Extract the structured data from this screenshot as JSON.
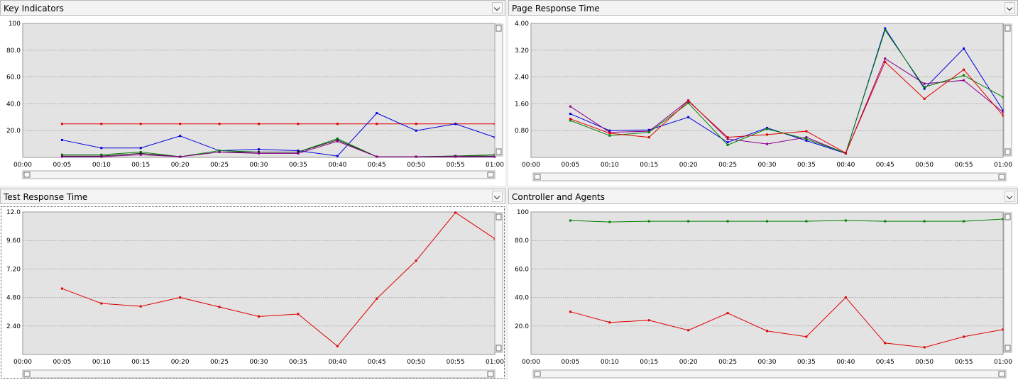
{
  "panels": [
    {
      "id": "key-indicators",
      "title": "Key Indicators",
      "dropdown_icon": "chevron-down-icon",
      "chart_data": {
        "type": "line",
        "title": "Key Indicators",
        "x": [
          "00:00",
          "00:05",
          "00:10",
          "00:15",
          "00:20",
          "00:25",
          "00:30",
          "00:35",
          "00:40",
          "00:45",
          "00:50",
          "00:55",
          "01:00"
        ],
        "y_ticks": [
          "100",
          "80.0",
          "60.0",
          "40.0",
          "20.0"
        ],
        "ylim": [
          0,
          100
        ],
        "grid": true,
        "series": [
          {
            "color": "#e00000",
            "values": [
              null,
              25,
              25,
              25,
              25,
              25,
              25,
              25,
              25,
              25,
              25,
              25,
              25
            ]
          },
          {
            "color": "#0000e0",
            "values": [
              null,
              13,
              7,
              7,
              16,
              5,
              6,
              5,
              1,
              33,
              20,
              25,
              15
            ]
          },
          {
            "color": "#008000",
            "values": [
              null,
              2,
              2,
              4,
              0.5,
              5,
              4,
              4,
              14,
              0.5,
              0.5,
              1,
              2
            ]
          },
          {
            "color": "#202020",
            "values": [
              null,
              1,
              1,
              3,
              0.5,
              4,
              4,
              4,
              13,
              0.5,
              0.5,
              1,
              1
            ]
          },
          {
            "color": "#8b008b",
            "values": [
              null,
              0.5,
              0.5,
              2,
              0.5,
              4,
              3,
              3,
              12,
              0.5,
              0.5,
              0.5,
              0.5
            ]
          }
        ]
      }
    },
    {
      "id": "page-response-time",
      "title": "Page Response Time",
      "dropdown_icon": "chevron-down-icon",
      "chart_data": {
        "type": "line",
        "title": "Page Response Time",
        "x": [
          "00:00",
          "00:05",
          "00:10",
          "00:15",
          "00:20",
          "00:25",
          "00:30",
          "00:35",
          "00:40",
          "00:45",
          "00:50",
          "00:55",
          "01:00"
        ],
        "y_ticks": [
          "4.00",
          "3.20",
          "2.40",
          "1.60",
          "0.80"
        ],
        "ylim": [
          0,
          4
        ],
        "grid": true,
        "series": [
          {
            "color": "#0000e0",
            "values": [
              null,
              1.3,
              0.8,
              0.82,
              1.2,
              0.45,
              0.88,
              0.5,
              0.12,
              3.85,
              2.05,
              3.25,
              1.4
            ]
          },
          {
            "color": "#8b008b",
            "values": [
              null,
              1.52,
              0.75,
              0.78,
              1.7,
              0.55,
              0.4,
              0.6,
              0.12,
              2.95,
              2.2,
              2.3,
              1.35
            ]
          },
          {
            "color": "#008000",
            "values": [
              null,
              1.1,
              0.65,
              0.75,
              1.62,
              0.37,
              0.85,
              0.55,
              0.13,
              3.8,
              2.1,
              2.45,
              1.8
            ]
          },
          {
            "color": "#e00000",
            "values": [
              null,
              1.15,
              0.72,
              0.6,
              1.68,
              0.6,
              0.68,
              0.78,
              0.13,
              2.85,
              1.75,
              2.62,
              1.25
            ]
          }
        ]
      }
    },
    {
      "id": "test-response-time",
      "title": "Test Response Time",
      "dropdown_icon": "chevron-down-icon",
      "chart_data": {
        "type": "line",
        "title": "Test Response Time",
        "x": [
          "00:00",
          "00:05",
          "00:10",
          "00:15",
          "00:20",
          "00:25",
          "00:30",
          "00:35",
          "00:40",
          "00:45",
          "00:50",
          "00:55",
          "01:00"
        ],
        "y_ticks": [
          "12.0",
          "9.60",
          "7.20",
          "4.80",
          "2.40"
        ],
        "ylim": [
          0,
          12
        ],
        "grid": true,
        "series": [
          {
            "color": "#e00000",
            "values": [
              null,
              5.55,
              4.3,
              4.05,
              4.8,
              4.0,
              3.2,
              3.4,
              0.7,
              4.7,
              7.9,
              11.95,
              9.75
            ]
          }
        ]
      }
    },
    {
      "id": "controller-and-agents",
      "title": "Controller and Agents",
      "dropdown_icon": "chevron-down-icon",
      "chart_data": {
        "type": "line",
        "title": "Controller and Agents",
        "x": [
          "00:00",
          "00:05",
          "00:10",
          "00:15",
          "00:20",
          "00:25",
          "00:30",
          "00:35",
          "00:40",
          "00:45",
          "00:50",
          "00:55",
          "01:00"
        ],
        "y_ticks": [
          "100",
          "80.0",
          "60.0",
          "40.0",
          "20.0"
        ],
        "ylim": [
          0,
          100
        ],
        "grid": true,
        "series": [
          {
            "color": "#008000",
            "values": [
              null,
              94,
              93,
              93.5,
              93.5,
              93.5,
              93.5,
              93.5,
              94,
              93.5,
              93.5,
              93.5,
              95
            ]
          },
          {
            "color": "#e00000",
            "values": [
              null,
              30,
              22.5,
              24,
              17,
              29,
              16.5,
              12.5,
              40,
              8,
              5,
              12.5,
              17.5
            ]
          }
        ]
      }
    }
  ]
}
